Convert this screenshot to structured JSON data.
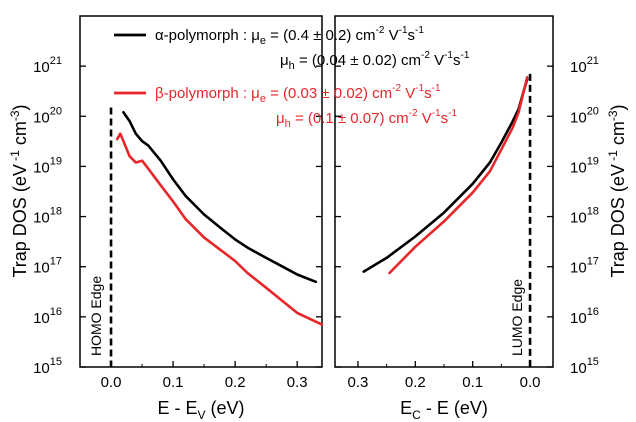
{
  "chart_data": {
    "type": "line",
    "y_scale": "log",
    "ylim": [
      1000000000000000.0,
      1e+22
    ],
    "ylabel": "Trap DOS (eV -1 cm-3)",
    "y_ticks": [
      {
        "exp": 15,
        "label": "10",
        "sup": "15"
      },
      {
        "exp": 16,
        "label": "10",
        "sup": "16"
      },
      {
        "exp": 17,
        "label": "10",
        "sup": "17"
      },
      {
        "exp": 18,
        "label": "10",
        "sup": "18"
      },
      {
        "exp": 19,
        "label": "10",
        "sup": "19"
      },
      {
        "exp": 20,
        "label": "10",
        "sup": "20"
      },
      {
        "exp": 21,
        "label": "10",
        "sup": "21"
      }
    ],
    "panels": [
      {
        "id": "left",
        "xlabel": {
          "main": "E - E",
          "sub": "V",
          "tail": " (eV)"
        },
        "xlim": [
          -0.05,
          0.34
        ],
        "x_ticks": [
          {
            "value": 0.0,
            "label": "0.0"
          },
          {
            "value": 0.1,
            "label": "0.1"
          },
          {
            "value": 0.2,
            "label": "0.2"
          },
          {
            "value": 0.3,
            "label": "0.3"
          }
        ],
        "edge": {
          "x": 0.0,
          "label": "HOMO Edge",
          "y_top": 1.5e+20
        },
        "series": [
          {
            "key": "alpha",
            "color": "#000000",
            "points": [
              [
                0.02,
                1.2e+20
              ],
              [
                0.03,
                8e+19
              ],
              [
                0.04,
                4.5e+19
              ],
              [
                0.05,
                3.2e+19
              ],
              [
                0.06,
                2.6e+19
              ],
              [
                0.08,
                1.3e+19
              ],
              [
                0.1,
                5.5e+18
              ],
              [
                0.12,
                2.6e+18
              ],
              [
                0.15,
                1.1e+18
              ],
              [
                0.18,
                5.5e+17
              ],
              [
                0.2,
                3.5e+17
              ],
              [
                0.22,
                2.4e+17
              ],
              [
                0.25,
                1.5e+17
              ],
              [
                0.28,
                9.5e+16
              ],
              [
                0.3,
                7e+16
              ],
              [
                0.33,
                5e+16
              ]
            ]
          },
          {
            "key": "beta",
            "color": "#e8262a",
            "points": [
              [
                0.01,
                3.5e+19
              ],
              [
                0.015,
                4.5e+19
              ],
              [
                0.02,
                3.2e+19
              ],
              [
                0.03,
                1.6e+19
              ],
              [
                0.04,
                1.2e+19
              ],
              [
                0.05,
                1.3e+19
              ],
              [
                0.06,
                9e+18
              ],
              [
                0.08,
                4.2e+18
              ],
              [
                0.1,
                2e+18
              ],
              [
                0.12,
                9e+17
              ],
              [
                0.15,
                3.8e+17
              ],
              [
                0.18,
                2e+17
              ],
              [
                0.2,
                1.3e+17
              ],
              [
                0.22,
                7.5e+16
              ],
              [
                0.25,
                3.8e+16
              ],
              [
                0.28,
                1.9e+16
              ],
              [
                0.3,
                1.2e+16
              ],
              [
                0.34,
                7000000000000000.0
              ]
            ]
          }
        ]
      },
      {
        "id": "right",
        "xlabel": {
          "main": "E",
          "sub": "C",
          "tail": " - E (eV)"
        },
        "xlim": [
          0.34,
          -0.04
        ],
        "x_ticks": [
          {
            "value": 0.3,
            "label": "0.3"
          },
          {
            "value": 0.2,
            "label": "0.2"
          },
          {
            "value": 0.1,
            "label": "0.1"
          },
          {
            "value": 0.0,
            "label": "0.0"
          }
        ],
        "edge": {
          "x": 0.0,
          "label": "LUMO Edge",
          "y_top": 7e+20
        },
        "series": [
          {
            "key": "alpha",
            "color": "#000000",
            "points": [
              [
                0.29,
                8e+16
              ],
              [
                0.25,
                1.5e+17
              ],
              [
                0.2,
                4e+17
              ],
              [
                0.15,
                1.2e+18
              ],
              [
                0.1,
                4.5e+18
              ],
              [
                0.07,
                1.2e+19
              ],
              [
                0.05,
                3e+19
              ],
              [
                0.03,
                8e+19
              ],
              [
                0.02,
                1.4e+20
              ],
              [
                0.01,
                3.5e+20
              ],
              [
                0.005,
                5.5e+20
              ]
            ]
          },
          {
            "key": "beta",
            "color": "#e8262a",
            "points": [
              [
                0.245,
                7.5e+16
              ],
              [
                0.2,
                2.5e+17
              ],
              [
                0.15,
                8e+17
              ],
              [
                0.1,
                3e+18
              ],
              [
                0.07,
                8e+18
              ],
              [
                0.05,
                2.2e+19
              ],
              [
                0.03,
                6e+19
              ],
              [
                0.02,
                1.2e+20
              ],
              [
                0.01,
                3.5e+20
              ],
              [
                0.005,
                6e+20
              ]
            ]
          }
        ]
      }
    ],
    "legend": [
      {
        "key": "alpha",
        "color": "#000000",
        "line1": {
          "name": "α-polymorph : ",
          "mu": "μ",
          "sub": "e",
          "text": " = (0.4 ± 0.2) cm",
          "e1": "-2",
          "mid": " V",
          "e2": "-1",
          "end": "s",
          "e3": "-1"
        },
        "line2": {
          "mu": "μ",
          "sub": "h",
          "text": " = (0.04 ± 0.02) cm",
          "e1": "-2",
          "mid": " V",
          "e2": "-1",
          "end": "s",
          "e3": "-1"
        }
      },
      {
        "key": "beta",
        "color": "#e8262a",
        "line1": {
          "name": "β-polymorph : ",
          "mu": "μ",
          "sub": "e",
          "text": " = (0.03 ± 0.02) cm",
          "e1": "-2",
          "mid": " V",
          "e2": "-1",
          "end": "s",
          "e3": "-1"
        },
        "line2": {
          "mu": "μ",
          "sub": "h",
          "text": " = (0.1 ± 0.07) cm",
          "e1": "-2",
          "mid": " V",
          "e2": "-1",
          "end": "s",
          "e3": "-1"
        }
      }
    ]
  }
}
